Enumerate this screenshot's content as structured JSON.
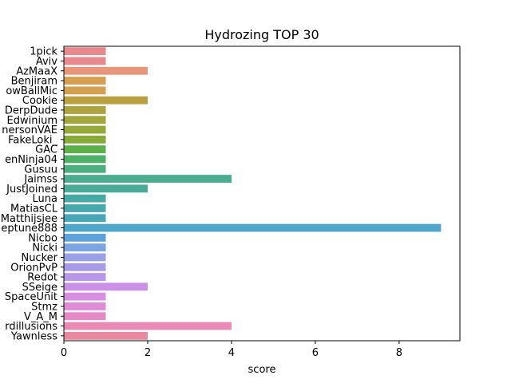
{
  "chart_data": {
    "type": "bar",
    "orientation": "horizontal",
    "title": "Hydrozing TOP 30",
    "xlabel": "score",
    "ylabel": "",
    "xlim": [
      0,
      9.45
    ],
    "xticks": [
      0,
      2,
      4,
      6,
      8
    ],
    "xtick_labels": [
      "0",
      "2",
      "4",
      "6",
      "8"
    ],
    "grid": false,
    "legend": "none",
    "categories": [
      "1pick",
      "Aviv",
      "AzMaaX",
      "Benjiram",
      "owBallMic",
      "Cookie",
      "DerpDude",
      "Edwinium",
      "nersonVAE",
      "FakeLoki_",
      "GAC",
      "enNinja04",
      "Gusuu",
      "Jaimss",
      "JustJoined",
      "Luna",
      "MatiasCL",
      "Matthijsjee",
      "eptune888",
      "Nicbo",
      "Nicki",
      "Nucker",
      "OrionPvP",
      "Redot",
      "SSeige",
      "SpaceUnit",
      "Stmz",
      "V_A_M",
      "rdillusions",
      "Yawnless"
    ],
    "values": [
      1,
      1,
      2,
      1,
      1,
      2,
      1,
      1,
      1,
      1,
      1,
      1,
      1,
      4,
      2,
      1,
      1,
      1,
      9,
      1,
      1,
      1,
      1,
      1,
      2,
      1,
      1,
      1,
      4,
      2
    ],
    "colors": [
      "#e8888f",
      "#e8888f",
      "#e8967a",
      "#d4a050",
      "#d4a050",
      "#b9a041",
      "#aba43e",
      "#a3a63b",
      "#97a83a",
      "#86ab39",
      "#5bb04a",
      "#4fb067",
      "#4caf7e",
      "#4aad8e",
      "#48ab98",
      "#47a9a4",
      "#47a9ab",
      "#48a7b6",
      "#4ea6c8",
      "#5aa3dc",
      "#7aa4e2",
      "#9aa0e6",
      "#a99ae8",
      "#b896e8",
      "#c991e8",
      "#d98ee2",
      "#e08bd6",
      "#e589c8",
      "#e88ab4",
      "#e889a2"
    ]
  }
}
